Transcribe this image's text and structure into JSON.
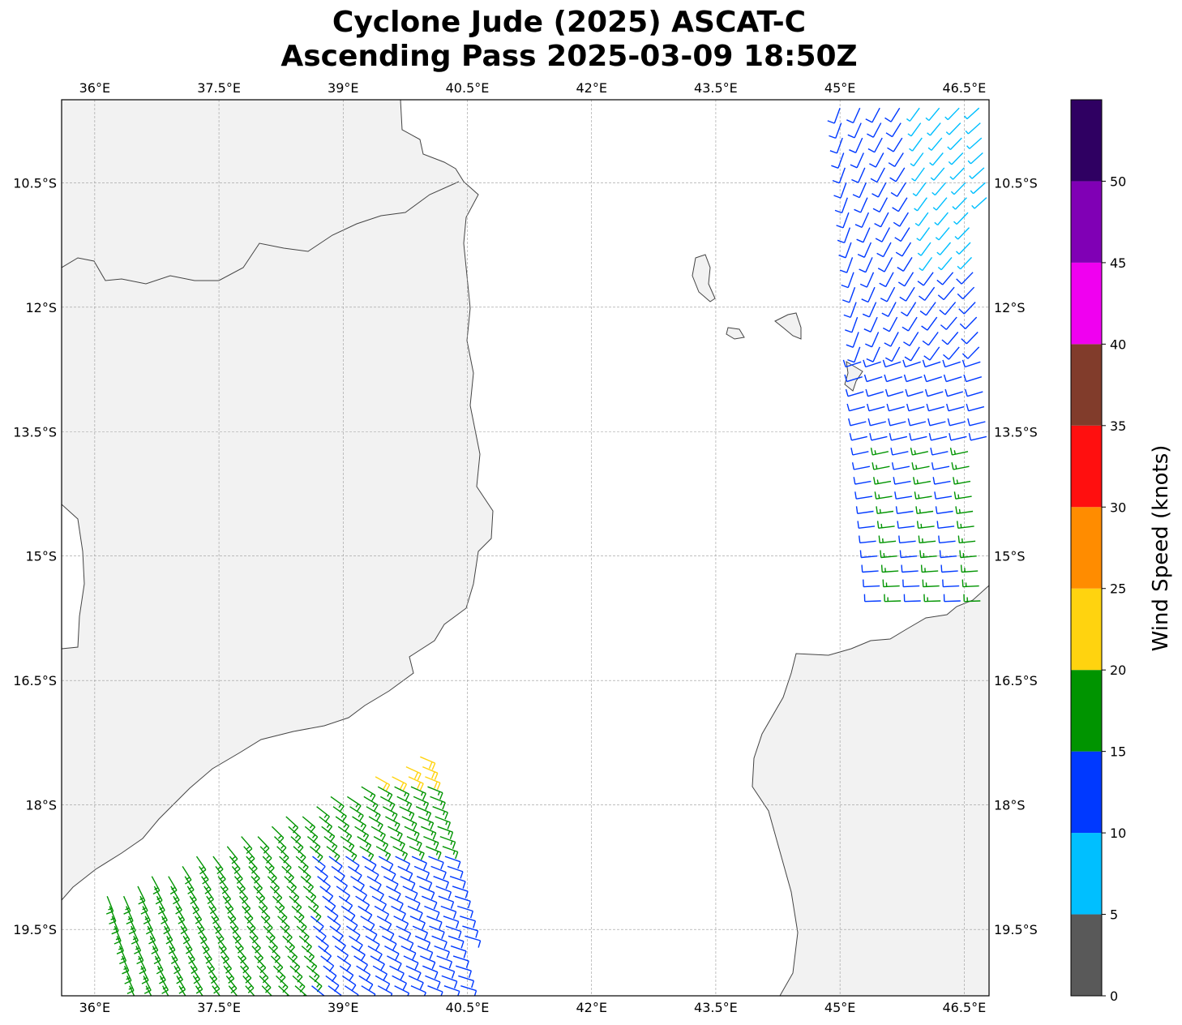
{
  "title": {
    "line1": "Cyclone Jude (2025) ASCAT-C",
    "line2": "Ascending Pass 2025-03-09 18:50Z"
  },
  "map": {
    "lon_range": [
      35.6,
      46.8
    ],
    "lat_range": [
      -20.3,
      -9.5
    ],
    "lon_ticks": [
      "36°E",
      "37.5°E",
      "39°E",
      "40.5°E",
      "42°E",
      "43.5°E",
      "45°E",
      "46.5°E"
    ],
    "lat_ticks": [
      "10.5°S",
      "12°S",
      "13.5°S",
      "15°S",
      "16.5°S",
      "18°S",
      "19.5°S"
    ],
    "gridlines": true,
    "land_color": "#f2f2f2",
    "ocean_color": "#ffffff",
    "coastline_color": "#444444"
  },
  "colorbar": {
    "label": "Wind Speed (knots)",
    "ticks": [
      "0",
      "5",
      "10",
      "15",
      "20",
      "25",
      "30",
      "35",
      "40",
      "45",
      "50"
    ],
    "bins": [
      {
        "min": 0,
        "max": 5,
        "color": "#595959"
      },
      {
        "min": 5,
        "max": 10,
        "color": "#00bfff"
      },
      {
        "min": 10,
        "max": 15,
        "color": "#0039ff"
      },
      {
        "min": 15,
        "max": 20,
        "color": "#009400"
      },
      {
        "min": 20,
        "max": 25,
        "color": "#ffd30f"
      },
      {
        "min": 25,
        "max": 30,
        "color": "#ff8c00"
      },
      {
        "min": 30,
        "max": 35,
        "color": "#ff0f0f"
      },
      {
        "min": 35,
        "max": 40,
        "color": "#813c2b"
      },
      {
        "min": 40,
        "max": 45,
        "color": "#f000f0"
      },
      {
        "min": 45,
        "max": 50,
        "color": "#8000b5"
      },
      {
        "min": 50,
        "max": 55,
        "color": "#2f0062"
      }
    ]
  },
  "swaths": [
    {
      "name": "east-swath",
      "lon_range": [
        45.0,
        46.8
      ],
      "lat_range": [
        -15.6,
        -9.5
      ]
    },
    {
      "name": "southwest-swath",
      "lon_range": [
        35.6,
        40.5
      ],
      "lat_range": [
        -20.3,
        -17.0
      ]
    }
  ]
}
